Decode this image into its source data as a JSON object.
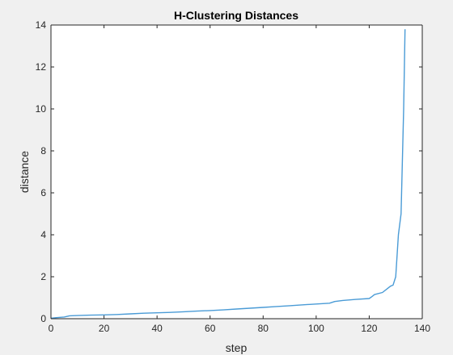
{
  "chart_data": {
    "type": "line",
    "title": "H-Clustering Distances",
    "xlabel": "step",
    "ylabel": "distance",
    "xlim": [
      0,
      140
    ],
    "ylim": [
      0,
      14
    ],
    "xticks": [
      0,
      20,
      40,
      60,
      80,
      100,
      120,
      140
    ],
    "yticks": [
      0,
      2,
      4,
      6,
      8,
      10,
      12,
      14
    ],
    "grid": false,
    "series": [
      {
        "color": "#4a9bd6",
        "x": [
          0,
          2,
          5,
          7,
          10,
          15,
          20,
          25,
          30,
          35,
          40,
          45,
          50,
          55,
          60,
          65,
          70,
          75,
          80,
          85,
          90,
          95,
          100,
          105,
          107,
          110,
          115,
          120,
          121,
          122,
          125,
          127,
          128,
          129,
          130,
          131,
          132,
          133,
          133.5
        ],
        "y": [
          0.02,
          0.05,
          0.08,
          0.14,
          0.15,
          0.17,
          0.18,
          0.2,
          0.23,
          0.26,
          0.28,
          0.3,
          0.33,
          0.36,
          0.39,
          0.42,
          0.46,
          0.5,
          0.54,
          0.58,
          0.62,
          0.66,
          0.7,
          0.74,
          0.82,
          0.87,
          0.92,
          0.96,
          1.05,
          1.15,
          1.25,
          1.45,
          1.55,
          1.6,
          2.0,
          4.0,
          5.0,
          10.0,
          13.8
        ]
      }
    ]
  }
}
